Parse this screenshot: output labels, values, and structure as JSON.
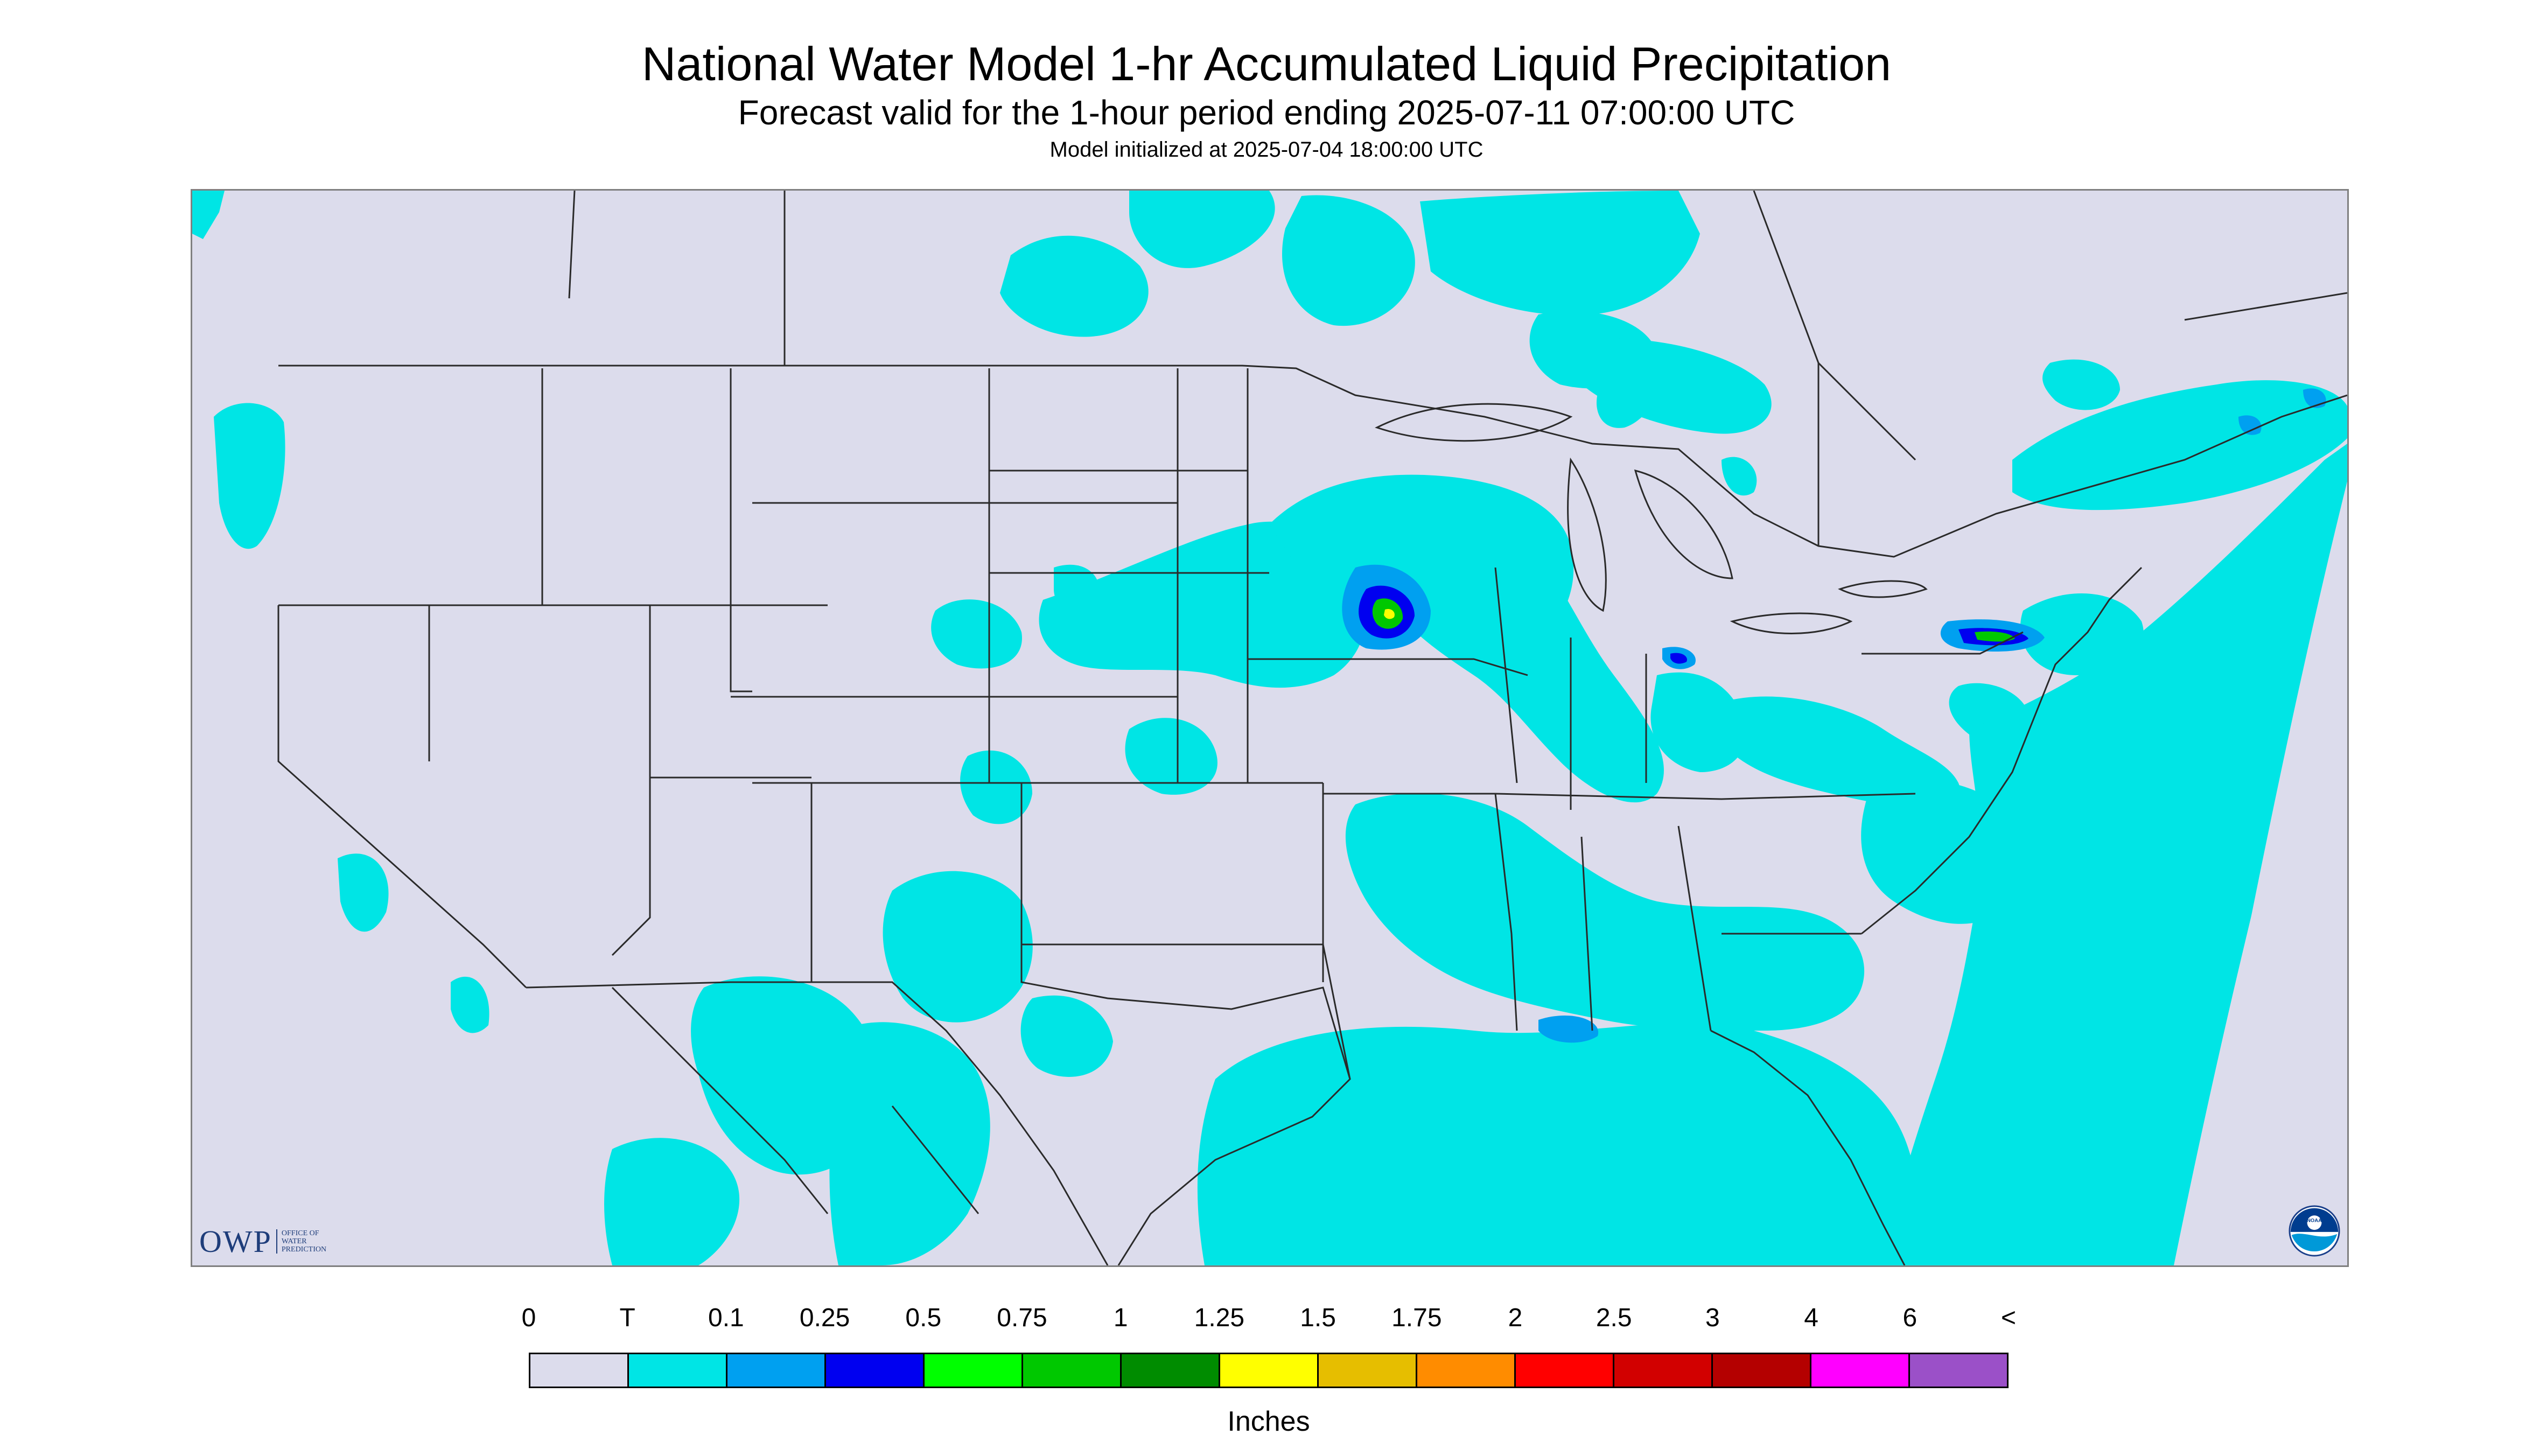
{
  "header": {
    "title": "National Water Model 1-hr Accumulated Liquid Precipitation",
    "subtitle": "Forecast valid for the 1-hour period ending 2025-07-11 07:00:00 UTC",
    "init": "Model initialized at 2025-07-04 18:00:00 UTC"
  },
  "map": {
    "background_color": "#dcdcec",
    "no_data_color": "#ffffff",
    "precip_color_light": "#00e5e5",
    "state_line_color": "#2a2a2a"
  },
  "legend": {
    "ticks": [
      "0",
      "T",
      "0.1",
      "0.25",
      "0.5",
      "0.75",
      "1",
      "1.25",
      "1.5",
      "1.75",
      "2",
      "2.5",
      "3",
      "4",
      "6",
      "<"
    ],
    "colors": [
      "#dcdcec",
      "#00e5e5",
      "#00a0f0",
      "#0000f0",
      "#00ff00",
      "#00c800",
      "#008c00",
      "#ffff00",
      "#e6be00",
      "#ff8c00",
      "#ff0000",
      "#d20000",
      "#b40000",
      "#ff00ff",
      "#9b50c8"
    ],
    "units": "Inches"
  },
  "logos": {
    "owp_main": "OWP",
    "owp_sub": [
      "OFFICE OF",
      "WATER",
      "PREDICTION"
    ],
    "noaa": "NOAA"
  }
}
